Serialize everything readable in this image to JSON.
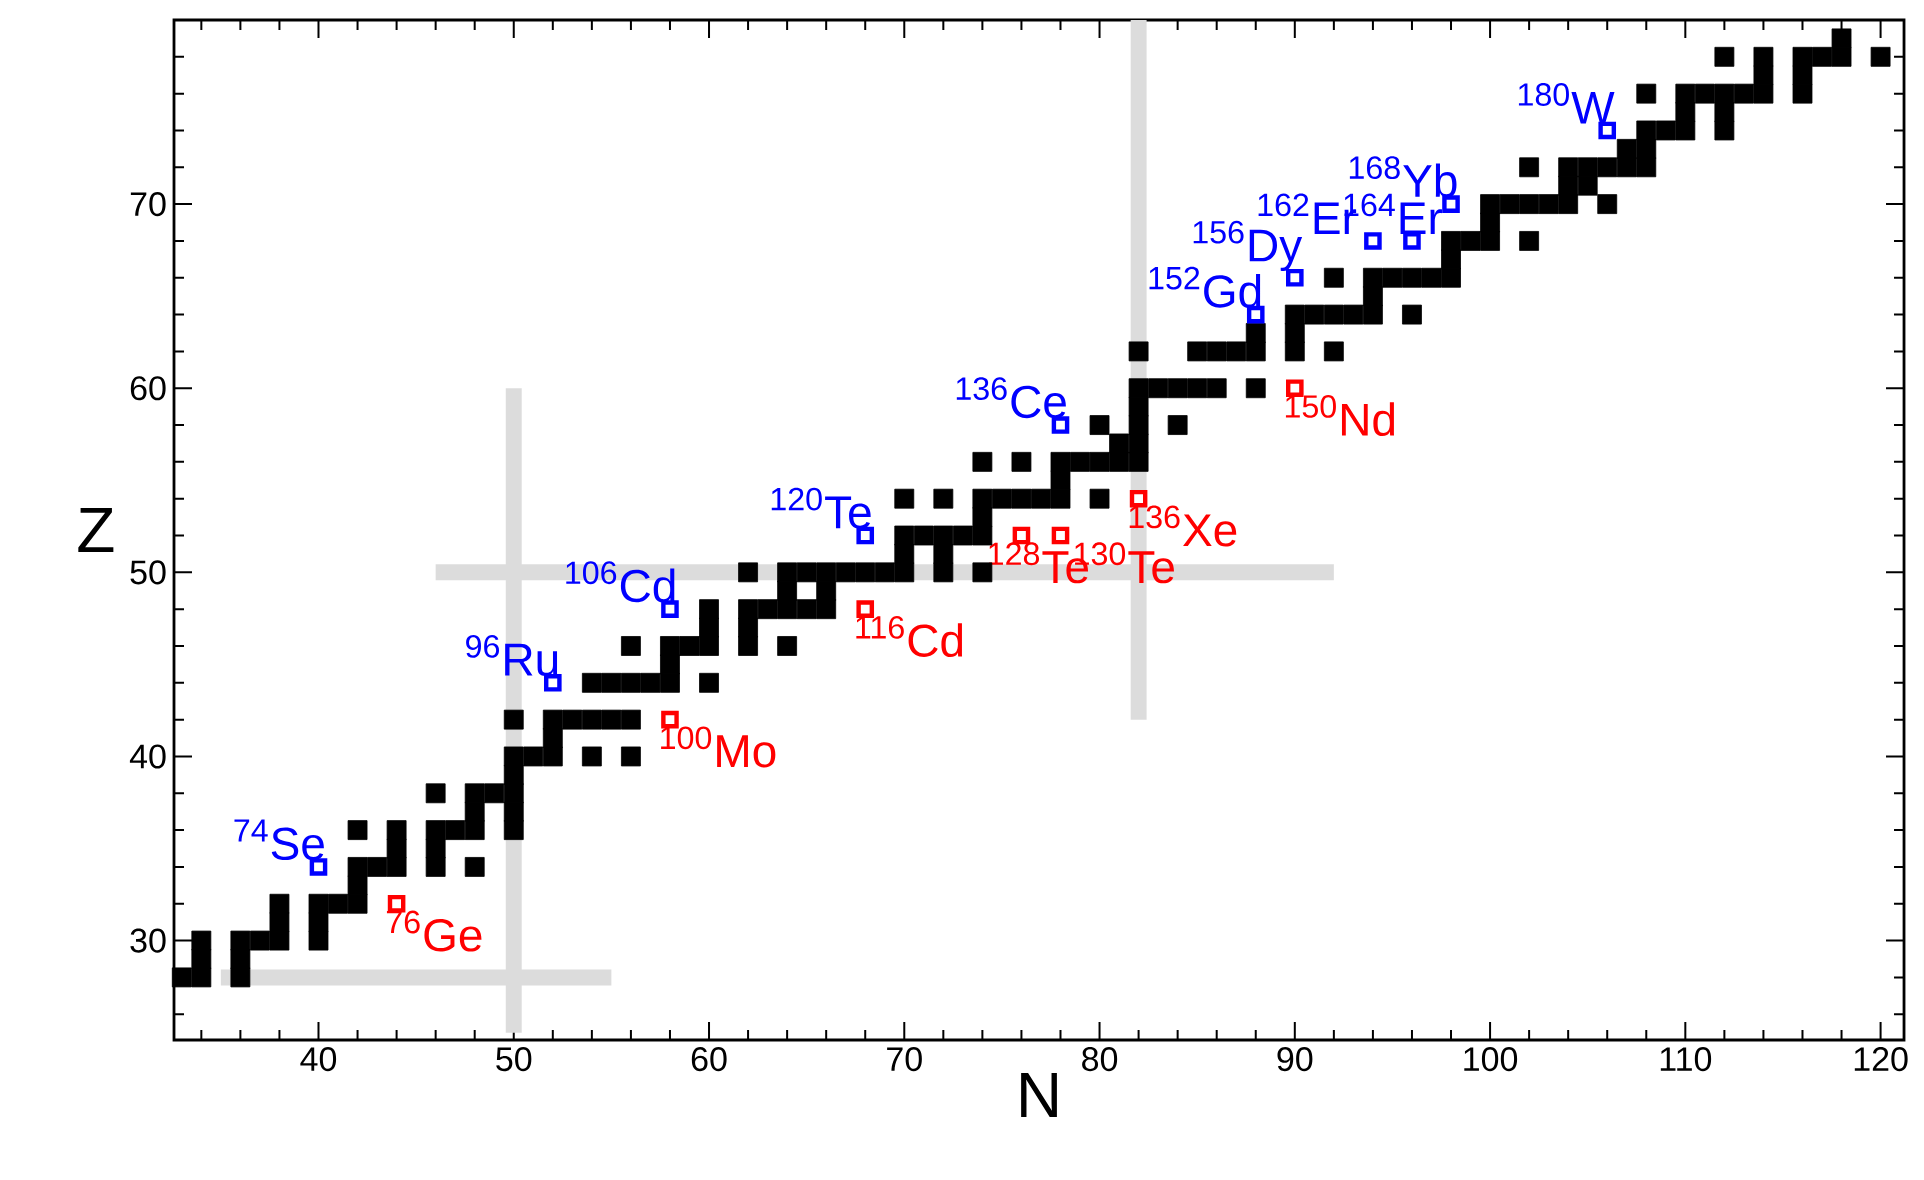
{
  "chart_data": {
    "type": "scatter",
    "xlabel": "N",
    "ylabel": "Z",
    "xlim": [
      32.6,
      121.2
    ],
    "ylim": [
      24.6,
      80
    ],
    "xticks": [
      {
        "value": 34,
        "label": null
      },
      {
        "value": 36,
        "label": null
      },
      {
        "value": 38,
        "label": null
      },
      40,
      {
        "value": 42,
        "label": null
      },
      {
        "value": 44,
        "label": null
      },
      {
        "value": 46,
        "label": null
      },
      {
        "value": 48,
        "label": null
      },
      50,
      {
        "value": 52,
        "label": null
      },
      {
        "value": 54,
        "label": null
      },
      {
        "value": 56,
        "label": null
      },
      {
        "value": 58,
        "label": null
      },
      60,
      {
        "value": 62,
        "label": null
      },
      {
        "value": 64,
        "label": null
      },
      {
        "value": 66,
        "label": null
      },
      {
        "value": 68,
        "label": null
      },
      70,
      {
        "value": 72,
        "label": null
      },
      {
        "value": 74,
        "label": null
      },
      {
        "value": 76,
        "label": null
      },
      {
        "value": 78,
        "label": null
      },
      80,
      {
        "value": 82,
        "label": null
      },
      {
        "value": 84,
        "label": null
      },
      {
        "value": 86,
        "label": null
      },
      {
        "value": 88,
        "label": null
      },
      90,
      {
        "value": 92,
        "label": null
      },
      {
        "value": 94,
        "label": null
      },
      {
        "value": 96,
        "label": null
      },
      {
        "value": 98,
        "label": null
      },
      100,
      {
        "value": 102,
        "label": null
      },
      {
        "value": 104,
        "label": null
      },
      {
        "value": 106,
        "label": null
      },
      {
        "value": 108,
        "label": null
      },
      110,
      {
        "value": 112,
        "label": null
      },
      {
        "value": 114,
        "label": null
      },
      {
        "value": 116,
        "label": null
      },
      {
        "value": 118,
        "label": null
      },
      120
    ],
    "yticks": [
      {
        "value": 26,
        "label": null
      },
      {
        "value": 28,
        "label": null
      },
      30,
      {
        "value": 32,
        "label": null
      },
      {
        "value": 34,
        "label": null
      },
      {
        "value": 36,
        "label": null
      },
      {
        "value": 38,
        "label": null
      },
      40,
      {
        "value": 42,
        "label": null
      },
      {
        "value": 44,
        "label": null
      },
      {
        "value": 46,
        "label": null
      },
      {
        "value": 48,
        "label": null
      },
      50,
      {
        "value": 52,
        "label": null
      },
      {
        "value": 54,
        "label": null
      },
      {
        "value": 56,
        "label": null
      },
      {
        "value": 58,
        "label": null
      },
      60,
      {
        "value": 62,
        "label": null
      },
      {
        "value": 64,
        "label": null
      },
      {
        "value": 66,
        "label": null
      },
      {
        "value": 68,
        "label": null
      },
      70,
      {
        "value": 72,
        "label": null
      },
      {
        "value": 74,
        "label": null
      },
      {
        "value": 76,
        "label": null
      },
      {
        "value": 78,
        "label": null
      }
    ],
    "marker": "square",
    "series": [
      {
        "type": "line",
        "marker": "none",
        "color": "#dcdcdc",
        "x": [
          50,
          50
        ],
        "values": [
          25,
          60
        ]
      },
      {
        "type": "line",
        "marker": "none",
        "color": "#dcdcdc",
        "x": [
          35,
          55
        ],
        "values": [
          28,
          28
        ]
      },
      {
        "type": "line",
        "marker": "none",
        "color": "#dcdcdc",
        "x": [
          46,
          92
        ],
        "values": [
          50,
          50
        ]
      },
      {
        "type": "line",
        "marker": "none",
        "color": "#dcdcdc",
        "x": [
          82,
          82
        ],
        "values": [
          42,
          80
        ]
      },
      {
        "color": "#000000",
        "x": [
          33,
          34,
          36,
          34,
          36,
          34,
          36,
          37,
          38,
          40,
          38,
          40,
          38,
          40,
          41,
          42,
          42,
          42,
          43,
          44,
          46,
          48,
          44,
          46,
          42,
          44,
          46,
          47,
          48,
          50,
          48,
          50,
          46,
          48,
          49,
          50,
          50,
          50,
          51,
          52,
          54,
          56,
          52,
          50,
          52,
          53,
          54,
          55,
          56,
          54,
          55,
          56,
          57,
          58,
          60,
          58,
          56,
          58,
          59,
          60,
          62,
          64,
          60,
          62,
          60,
          62,
          63,
          64,
          65,
          66,
          64,
          66,
          62,
          64,
          65,
          66,
          67,
          68,
          69,
          70,
          72,
          74,
          70,
          72,
          70,
          71,
          72,
          73,
          74,
          74,
          70,
          72,
          74,
          75,
          76,
          77,
          78,
          80,
          78,
          74,
          76,
          78,
          79,
          80,
          81,
          82,
          81,
          82,
          80,
          82,
          84,
          82,
          82,
          83,
          84,
          85,
          86,
          88,
          82,
          85,
          86,
          87,
          88,
          90,
          92,
          88,
          90,
          90,
          91,
          92,
          93,
          94,
          96,
          94,
          92,
          94,
          95,
          96,
          97,
          98,
          98,
          98,
          99,
          100,
          102,
          100,
          100,
          101,
          102,
          103,
          104,
          106,
          104,
          105,
          102,
          104,
          105,
          106,
          107,
          108,
          107,
          108,
          108,
          109,
          110,
          112,
          110,
          112,
          108,
          110,
          111,
          112,
          113,
          114,
          116,
          114,
          116,
          112,
          114,
          116,
          117,
          118,
          120,
          118
        ],
        "values": [
          28,
          28,
          28,
          29,
          29,
          30,
          30,
          30,
          30,
          30,
          31,
          31,
          32,
          32,
          32,
          32,
          33,
          34,
          34,
          34,
          34,
          34,
          35,
          35,
          36,
          36,
          36,
          36,
          36,
          36,
          37,
          37,
          38,
          38,
          38,
          38,
          39,
          40,
          40,
          40,
          40,
          40,
          41,
          42,
          42,
          42,
          42,
          42,
          42,
          44,
          44,
          44,
          44,
          44,
          44,
          45,
          46,
          46,
          46,
          46,
          46,
          46,
          47,
          47,
          48,
          48,
          48,
          48,
          48,
          48,
          49,
          49,
          50,
          50,
          50,
          50,
          50,
          50,
          50,
          50,
          50,
          50,
          51,
          51,
          52,
          52,
          52,
          52,
          52,
          53,
          54,
          54,
          54,
          54,
          54,
          54,
          54,
          54,
          55,
          56,
          56,
          56,
          56,
          56,
          56,
          56,
          57,
          57,
          58,
          58,
          58,
          59,
          60,
          60,
          60,
          60,
          60,
          60,
          62,
          62,
          62,
          62,
          62,
          62,
          62,
          63,
          63,
          64,
          64,
          64,
          64,
          64,
          64,
          65,
          66,
          66,
          66,
          66,
          66,
          66,
          67,
          68,
          68,
          68,
          68,
          69,
          70,
          70,
          70,
          70,
          70,
          70,
          71,
          71,
          72,
          72,
          72,
          72,
          72,
          72,
          73,
          73,
          74,
          74,
          74,
          74,
          75,
          75,
          76,
          76,
          76,
          76,
          76,
          76,
          76,
          77,
          77,
          78,
          78,
          78,
          78,
          78,
          78,
          79
        ]
      },
      {
        "color": "#0000ff",
        "x": [
          40,
          52,
          58,
          68,
          78,
          88,
          90,
          94,
          96,
          98,
          106
        ],
        "values": [
          34,
          44,
          48,
          52,
          58,
          64,
          66,
          68,
          68,
          70,
          74
        ]
      },
      {
        "color": "#ff0000",
        "x": [
          44,
          58,
          68,
          76,
          78,
          82,
          90
        ],
        "values": [
          32,
          42,
          48,
          52,
          52,
          54,
          60
        ]
      }
    ],
    "annotations": [
      {
        "text": "$^{74}$Se",
        "x": 40,
        "y": 34
      },
      {
        "text": "$^{96}$Ru",
        "x": 52,
        "y": 44
      },
      {
        "text": "$^{106}$Cd",
        "x": 58,
        "y": 48
      },
      {
        "text": "$^{120}$Te",
        "x": 68,
        "y": 52
      },
      {
        "text": "$^{136}$Ce",
        "x": 78,
        "y": 58
      },
      {
        "text": "$^{152}$Gd",
        "x": 88,
        "y": 64
      },
      {
        "text": "$^{156}$Dy",
        "x": 90,
        "y": 66
      },
      {
        "text": "$^{162}$Er",
        "x": 94,
        "y": 68
      },
      {
        "text": "$^{164}$Er",
        "x": 96,
        "y": 68
      },
      {
        "text": "$^{168}$Yb",
        "x": 98,
        "y": 70
      },
      {
        "text": "$^{180}$W",
        "x": 106,
        "y": 74
      },
      {
        "text": "$^{76}$Ge",
        "x": 44,
        "y": 32
      },
      {
        "text": "$^{100}$Mo",
        "x": 58,
        "y": 42
      },
      {
        "text": "$^{116}$Cd",
        "x": 68,
        "y": 48
      },
      {
        "text": "$^{128}$Te",
        "x": 76,
        "y": 52
      },
      {
        "text": "$^{130}$Te",
        "x": 78,
        "y": 52
      },
      {
        "text": "$^{136}$Xe",
        "x": 82,
        "y": 54
      },
      {
        "text": "$^{150}$Nd",
        "x": 90,
        "y": 60
      }
    ]
  }
}
